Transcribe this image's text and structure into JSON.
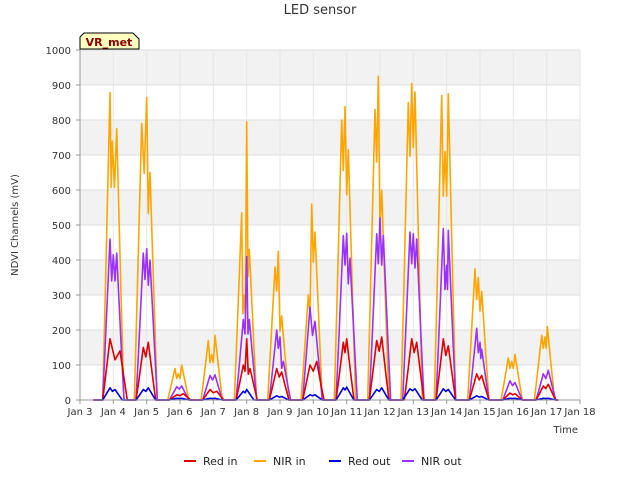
{
  "chart_data": {
    "type": "line",
    "title": "LED sensor",
    "xlabel": "Time",
    "ylabel": "NDVI Channels (mV)",
    "badge": "VR_met",
    "ylim": [
      0,
      1000
    ],
    "yticks": [
      0,
      100,
      200,
      300,
      400,
      500,
      600,
      700,
      800,
      900,
      1000
    ],
    "xlim": [
      3,
      18
    ],
    "xticks": [
      {
        "value": 3,
        "label": "Jan 3"
      },
      {
        "value": 4,
        "label": "Jan 4"
      },
      {
        "value": 5,
        "label": "Jan 5"
      },
      {
        "value": 6,
        "label": "Jan 6"
      },
      {
        "value": 7,
        "label": "Jan 7"
      },
      {
        "value": 8,
        "label": "Jan 8"
      },
      {
        "value": 9,
        "label": "Jan 9"
      },
      {
        "value": 10,
        "label": "Jan 10"
      },
      {
        "value": 11,
        "label": "Jan 11"
      },
      {
        "value": 12,
        "label": "Jan 12"
      },
      {
        "value": 13,
        "label": "Jan 13"
      },
      {
        "value": 14,
        "label": "Jan 14"
      },
      {
        "value": 15,
        "label": "Jan 15"
      },
      {
        "value": 16,
        "label": "Jan 16"
      },
      {
        "value": 17,
        "label": "Jan 17"
      },
      {
        "value": 18,
        "label": "Jan 18"
      }
    ],
    "grid": true,
    "legend_position": "bottom",
    "series": [
      {
        "name": "Red in",
        "color": "#dd0000",
        "peaks": [
          [
            3.9,
            175
          ],
          [
            4.2,
            140
          ],
          [
            4.9,
            150
          ],
          [
            5.05,
            165
          ],
          [
            5.9,
            15
          ],
          [
            6.1,
            18
          ],
          [
            6.9,
            30
          ],
          [
            7.1,
            25
          ],
          [
            7.9,
            100
          ],
          [
            8.0,
            175
          ],
          [
            8.1,
            90
          ],
          [
            8.9,
            90
          ],
          [
            9.05,
            80
          ],
          [
            9.9,
            100
          ],
          [
            10.1,
            110
          ],
          [
            10.9,
            165
          ],
          [
            11.0,
            175
          ],
          [
            11.9,
            170
          ],
          [
            12.05,
            180
          ],
          [
            12.95,
            175
          ],
          [
            13.1,
            165
          ],
          [
            13.9,
            175
          ],
          [
            14.05,
            155
          ],
          [
            14.9,
            75
          ],
          [
            15.05,
            70
          ],
          [
            15.9,
            20
          ],
          [
            16.05,
            18
          ],
          [
            16.9,
            40
          ],
          [
            17.05,
            45
          ]
        ]
      },
      {
        "name": "NIR in",
        "color": "#ffa500",
        "peaks": [
          [
            3.9,
            878
          ],
          [
            3.97,
            740
          ],
          [
            4.1,
            775
          ],
          [
            4.85,
            790
          ],
          [
            5.0,
            865
          ],
          [
            5.1,
            650
          ],
          [
            5.85,
            90
          ],
          [
            5.95,
            75
          ],
          [
            6.05,
            100
          ],
          [
            6.85,
            170
          ],
          [
            6.95,
            130
          ],
          [
            7.05,
            185
          ],
          [
            7.85,
            535
          ],
          [
            7.92,
            300
          ],
          [
            8.0,
            795
          ],
          [
            8.08,
            430
          ],
          [
            8.85,
            380
          ],
          [
            8.95,
            425
          ],
          [
            9.05,
            240
          ],
          [
            9.85,
            300
          ],
          [
            9.95,
            560
          ],
          [
            10.05,
            480
          ],
          [
            10.85,
            800
          ],
          [
            10.95,
            838
          ],
          [
            11.05,
            715
          ],
          [
            11.85,
            830
          ],
          [
            11.95,
            925
          ],
          [
            12.05,
            600
          ],
          [
            12.85,
            850
          ],
          [
            12.95,
            905
          ],
          [
            13.05,
            880
          ],
          [
            13.85,
            870
          ],
          [
            13.95,
            710
          ],
          [
            14.05,
            875
          ],
          [
            14.85,
            375
          ],
          [
            14.95,
            350
          ],
          [
            15.05,
            310
          ],
          [
            15.85,
            120
          ],
          [
            15.95,
            110
          ],
          [
            16.05,
            130
          ],
          [
            16.85,
            185
          ],
          [
            16.95,
            180
          ],
          [
            17.02,
            210
          ]
        ]
      },
      {
        "name": "Red out",
        "color": "#0000dd",
        "peaks": [
          [
            3.9,
            35
          ],
          [
            4.05,
            30
          ],
          [
            4.9,
            30
          ],
          [
            5.05,
            35
          ],
          [
            5.9,
            5
          ],
          [
            6.05,
            5
          ],
          [
            6.9,
            5
          ],
          [
            7.05,
            5
          ],
          [
            7.9,
            25
          ],
          [
            8.0,
            30
          ],
          [
            8.9,
            12
          ],
          [
            9.05,
            10
          ],
          [
            9.9,
            15
          ],
          [
            10.05,
            15
          ],
          [
            10.9,
            35
          ],
          [
            11.0,
            37
          ],
          [
            11.9,
            30
          ],
          [
            12.05,
            35
          ],
          [
            12.9,
            32
          ],
          [
            13.05,
            32
          ],
          [
            13.9,
            32
          ],
          [
            14.05,
            30
          ],
          [
            14.9,
            12
          ],
          [
            15.05,
            10
          ],
          [
            15.9,
            5
          ],
          [
            16.05,
            5
          ],
          [
            16.9,
            5
          ],
          [
            17.05,
            5
          ]
        ]
      },
      {
        "name": "NIR out",
        "color": "#9b30ff",
        "peaks": [
          [
            3.9,
            460
          ],
          [
            4.0,
            415
          ],
          [
            4.1,
            420
          ],
          [
            4.9,
            420
          ],
          [
            5.0,
            432
          ],
          [
            5.1,
            400
          ],
          [
            5.9,
            38
          ],
          [
            6.05,
            40
          ],
          [
            6.9,
            70
          ],
          [
            7.05,
            72
          ],
          [
            7.9,
            230
          ],
          [
            8.0,
            410
          ],
          [
            8.08,
            230
          ],
          [
            8.9,
            200
          ],
          [
            9.0,
            180
          ],
          [
            9.1,
            110
          ],
          [
            9.9,
            265
          ],
          [
            10.05,
            225
          ],
          [
            10.9,
            470
          ],
          [
            11.0,
            476
          ],
          [
            11.1,
            405
          ],
          [
            11.9,
            475
          ],
          [
            12.0,
            520
          ],
          [
            12.1,
            470
          ],
          [
            12.9,
            480
          ],
          [
            13.0,
            475
          ],
          [
            13.1,
            460
          ],
          [
            13.9,
            490
          ],
          [
            14.0,
            385
          ],
          [
            14.05,
            485
          ],
          [
            14.9,
            205
          ],
          [
            15.0,
            165
          ],
          [
            15.05,
            145
          ],
          [
            15.9,
            55
          ],
          [
            16.05,
            50
          ],
          [
            16.9,
            75
          ],
          [
            17.05,
            85
          ]
        ]
      }
    ]
  }
}
